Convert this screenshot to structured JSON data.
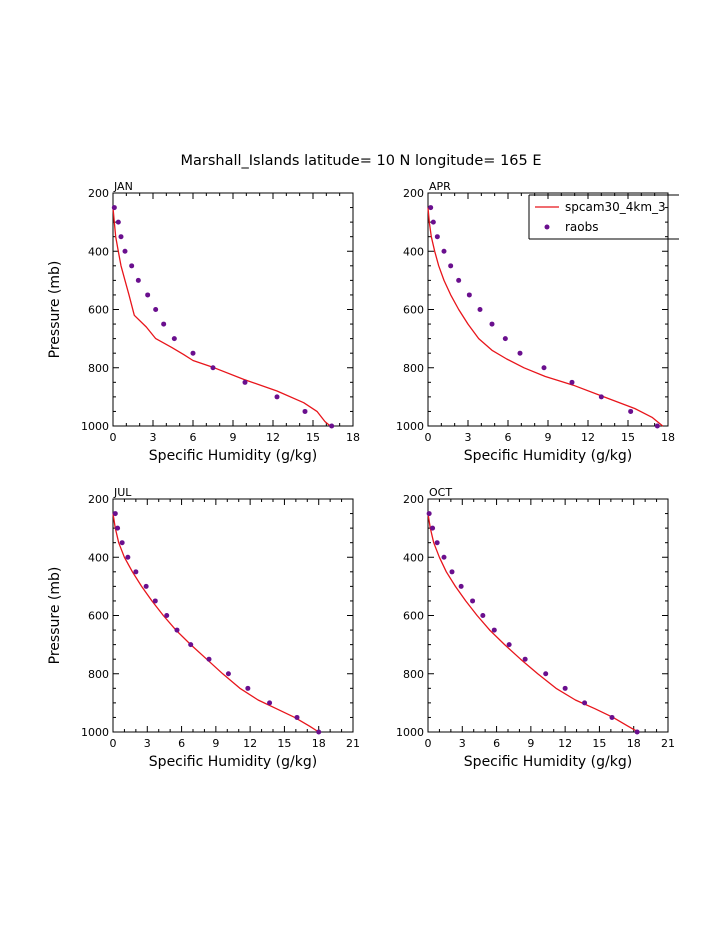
{
  "title": "Marshall_Islands  latitude= 10 N longitude= 165 E",
  "legend": [
    {
      "label": "spcam30_4km_3",
      "color": "#e8151b",
      "kind": "line"
    },
    {
      "label": "raobs",
      "color": "#6a0f8e",
      "kind": "marker"
    }
  ],
  "colors": {
    "model": "#e8151b",
    "obs": "#6a0f8e"
  },
  "chart_data": [
    {
      "type": "line",
      "title": "JAN",
      "xlabel": "Specific Humidity (g/kg)",
      "ylabel": "Pressure (mb)",
      "xlim": [
        0,
        18
      ],
      "ylim": [
        1000,
        200
      ],
      "y_inverted": true,
      "xticks": [
        0,
        3,
        6,
        9,
        12,
        15,
        18
      ],
      "yticks": [
        200,
        400,
        600,
        800,
        1000
      ],
      "legend": false,
      "series": [
        {
          "name": "spcam30_4km_3",
          "style": "line",
          "x": [
            0.0,
            0.1,
            0.2,
            0.4,
            0.6,
            0.9,
            1.2,
            1.6,
            2.5,
            3.2,
            4.4,
            5.3,
            6.0,
            7.6,
            9.8,
            12.3,
            14.3,
            15.3,
            15.9,
            16.3
          ],
          "y": [
            250,
            300,
            350,
            400,
            450,
            500,
            550,
            620,
            660,
            700,
            730,
            755,
            775,
            800,
            840,
            880,
            920,
            950,
            985,
            1000
          ]
        },
        {
          "name": "raobs",
          "style": "scatter",
          "x": [
            0.1,
            0.4,
            0.6,
            0.9,
            1.4,
            1.9,
            2.6,
            3.2,
            3.8,
            4.6,
            6.0,
            7.5,
            9.9,
            12.3,
            14.4,
            16.4
          ],
          "y": [
            250,
            300,
            350,
            400,
            450,
            500,
            550,
            600,
            650,
            700,
            750,
            800,
            850,
            900,
            950,
            1000
          ]
        }
      ]
    },
    {
      "type": "line",
      "title": "APR",
      "xlabel": "Specific Humidity (g/kg)",
      "ylabel": "",
      "xlim": [
        0,
        18
      ],
      "ylim": [
        1000,
        200
      ],
      "y_inverted": true,
      "xticks": [
        0,
        3,
        6,
        9,
        12,
        15,
        18
      ],
      "yticks": [
        200,
        400,
        600,
        800,
        1000
      ],
      "legend": true,
      "series": [
        {
          "name": "spcam30_4km_3",
          "style": "line",
          "x": [
            0.0,
            0.1,
            0.25,
            0.5,
            0.8,
            1.2,
            1.7,
            2.3,
            3.0,
            3.8,
            4.8,
            5.9,
            7.2,
            8.8,
            10.9,
            13.2,
            15.5,
            16.8,
            17.6
          ],
          "y": [
            250,
            300,
            350,
            400,
            450,
            500,
            550,
            600,
            650,
            700,
            740,
            770,
            800,
            830,
            860,
            900,
            940,
            970,
            1000
          ]
        },
        {
          "name": "raobs",
          "style": "scatter",
          "x": [
            0.2,
            0.4,
            0.7,
            1.2,
            1.7,
            2.3,
            3.1,
            3.9,
            4.8,
            5.8,
            6.9,
            8.7,
            10.8,
            13.0,
            15.2,
            17.2
          ],
          "y": [
            250,
            300,
            350,
            400,
            450,
            500,
            550,
            600,
            650,
            700,
            750,
            800,
            850,
            900,
            950,
            1000
          ]
        }
      ]
    },
    {
      "type": "line",
      "title": "JUL",
      "xlabel": "Specific Humidity (g/kg)",
      "ylabel": "Pressure (mb)",
      "xlim": [
        0,
        21
      ],
      "ylim": [
        1000,
        200
      ],
      "y_inverted": true,
      "xticks": [
        0,
        3,
        6,
        9,
        12,
        15,
        18,
        21
      ],
      "yticks": [
        200,
        400,
        600,
        800,
        1000
      ],
      "legend": false,
      "series": [
        {
          "name": "spcam30_4km_3",
          "style": "line",
          "x": [
            0.0,
            0.2,
            0.5,
            1.0,
            1.7,
            2.5,
            3.4,
            4.4,
            5.5,
            6.8,
            8.2,
            9.6,
            11.1,
            12.7,
            14.3,
            15.9,
            17.2,
            18.0
          ],
          "y": [
            250,
            300,
            350,
            400,
            450,
            500,
            550,
            600,
            650,
            700,
            750,
            800,
            850,
            890,
            920,
            950,
            980,
            1000
          ]
        },
        {
          "name": "raobs",
          "style": "scatter",
          "x": [
            0.2,
            0.4,
            0.8,
            1.3,
            2.0,
            2.9,
            3.7,
            4.7,
            5.6,
            6.8,
            8.4,
            10.1,
            11.8,
            13.7,
            16.1,
            18.0
          ],
          "y": [
            250,
            300,
            350,
            400,
            450,
            500,
            550,
            600,
            650,
            700,
            750,
            800,
            850,
            900,
            950,
            1000
          ]
        }
      ]
    },
    {
      "type": "line",
      "title": "OCT",
      "xlabel": "Specific Humidity (g/kg)",
      "ylabel": "",
      "xlim": [
        0,
        21
      ],
      "ylim": [
        1000,
        200
      ],
      "y_inverted": true,
      "xticks": [
        0,
        3,
        6,
        9,
        12,
        15,
        18,
        21
      ],
      "yticks": [
        200,
        400,
        600,
        800,
        1000
      ],
      "legend": false,
      "series": [
        {
          "name": "spcam30_4km_3",
          "style": "line",
          "x": [
            0.0,
            0.2,
            0.5,
            1.0,
            1.6,
            2.4,
            3.3,
            4.3,
            5.4,
            6.7,
            8.1,
            9.6,
            11.2,
            12.9,
            14.6,
            16.2,
            17.5,
            18.4
          ],
          "y": [
            250,
            300,
            350,
            400,
            450,
            500,
            550,
            600,
            650,
            700,
            750,
            800,
            850,
            890,
            920,
            950,
            980,
            1000
          ]
        },
        {
          "name": "raobs",
          "style": "scatter",
          "x": [
            0.1,
            0.4,
            0.8,
            1.4,
            2.1,
            2.9,
            3.9,
            4.8,
            5.8,
            7.1,
            8.5,
            10.3,
            12.0,
            13.7,
            16.1,
            18.3
          ],
          "y": [
            250,
            300,
            350,
            400,
            450,
            500,
            550,
            600,
            650,
            700,
            750,
            800,
            850,
            900,
            950,
            1000
          ]
        }
      ]
    }
  ]
}
